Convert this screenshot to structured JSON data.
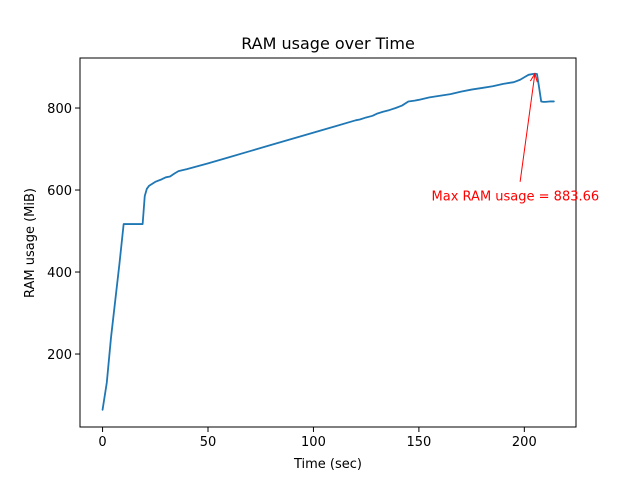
{
  "colors": {
    "line": "#1f77b4",
    "annotation": "#ff0000",
    "axis": "#000000",
    "background": "#ffffff"
  },
  "chart_data": {
    "type": "line",
    "title": "RAM usage over Time",
    "xlabel": "Time (sec)",
    "ylabel": "RAM usage (MiB)",
    "xlim": [
      -10.7,
      224.5
    ],
    "ylim": [
      22,
      922
    ],
    "xticks": [
      0,
      50,
      100,
      150,
      200
    ],
    "xtick_labels": [
      "0",
      "50",
      "100",
      "150",
      "200"
    ],
    "yticks": [
      200,
      400,
      600,
      800
    ],
    "ytick_labels": [
      "200",
      "400",
      "600",
      "800"
    ],
    "grid": false,
    "legend": "none",
    "series": [
      {
        "x": [
          0,
          2,
          4,
          6,
          8,
          10,
          12,
          15,
          17,
          19,
          20,
          21,
          22,
          25,
          28,
          30,
          32,
          34,
          36,
          40,
          50,
          60,
          70,
          80,
          90,
          100,
          110,
          120,
          122,
          125,
          128,
          130,
          133,
          136,
          139,
          142,
          145,
          148,
          150,
          155,
          160,
          165,
          170,
          175,
          180,
          185,
          190,
          195,
          198,
          200,
          202,
          204,
          205,
          206,
          207,
          208,
          209,
          210,
          212,
          214
        ],
        "y": [
          64,
          130,
          240,
          330,
          420,
          517,
          517,
          517,
          517,
          517,
          585,
          603,
          610,
          620,
          626,
          631,
          633,
          640,
          646,
          651,
          665,
          680,
          695,
          710,
          725,
          740,
          755,
          770,
          772,
          777,
          781,
          786,
          791,
          795,
          800,
          806,
          816,
          818,
          820,
          826,
          830,
          834,
          840,
          845,
          849,
          853,
          859,
          863,
          869,
          875,
          881,
          883,
          883.66,
          883,
          850,
          816,
          815,
          815,
          816,
          816
        ]
      }
    ],
    "annotations": [
      {
        "text": "Max RAM usage = 883.66",
        "point": [
          205,
          883.66
        ],
        "text_position": [
          156,
          584
        ],
        "arrow_tail": [
          198,
          620
        ],
        "color": "#ff0000"
      }
    ]
  }
}
